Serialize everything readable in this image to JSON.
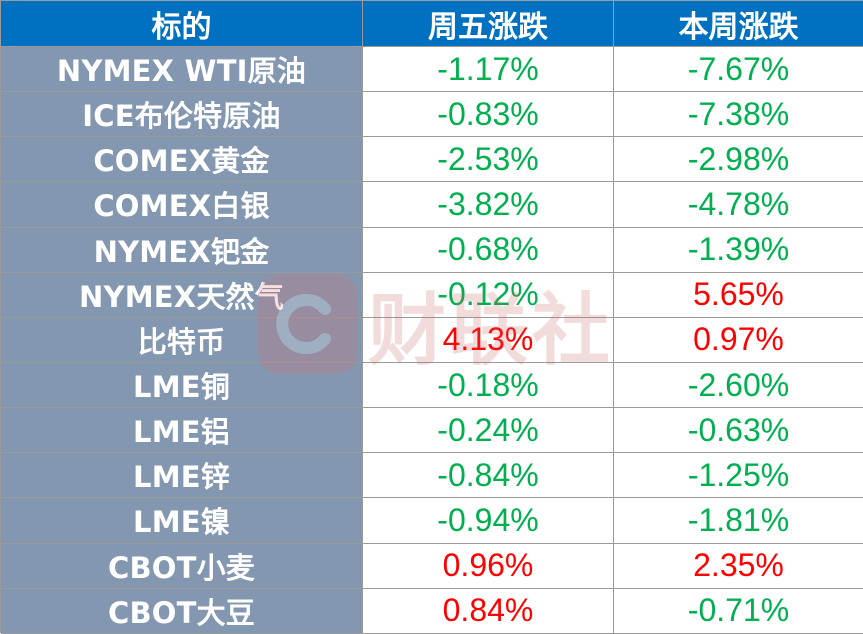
{
  "header": {
    "col1": "标的",
    "col2": "周五涨跌",
    "col3": "本周涨跌"
  },
  "rows": [
    {
      "name": "NYMEX WTI原油",
      "fri": "-1.17%",
      "week": "-7.67%"
    },
    {
      "name": "ICE布伦特原油",
      "fri": "-0.83%",
      "week": "-7.38%"
    },
    {
      "name": "COMEX黄金",
      "fri": "-2.53%",
      "week": "-2.98%"
    },
    {
      "name": "COMEX白银",
      "fri": "-3.82%",
      "week": "-4.78%"
    },
    {
      "name": "NYMEX钯金",
      "fri": "-0.68%",
      "week": "-1.39%"
    },
    {
      "name": "NYMEX天然气",
      "fri": "-0.12%",
      "week": "5.65%"
    },
    {
      "name": "比特币",
      "fri": "4.13%",
      "week": "0.97%"
    },
    {
      "name": "LME铜",
      "fri": "-0.18%",
      "week": "-2.60%"
    },
    {
      "name": "LME铝",
      "fri": "-0.24%",
      "week": "-0.63%"
    },
    {
      "name": "LME锌",
      "fri": "-0.84%",
      "week": "-1.25%"
    },
    {
      "name": "LME镍",
      "fri": "-0.94%",
      "week": "-1.81%"
    },
    {
      "name": "CBOT小麦",
      "fri": "0.96%",
      "week": "2.35%"
    },
    {
      "name": "CBOT大豆",
      "fri": "0.84%",
      "week": "-0.71%"
    }
  ],
  "watermark": {
    "text": "财联社",
    "icon": "cls-logo-icon"
  },
  "colors": {
    "header_bg": "#0070c0",
    "name_bg": "#8497b0",
    "negative": "#00b050",
    "positive": "#ff0000"
  }
}
